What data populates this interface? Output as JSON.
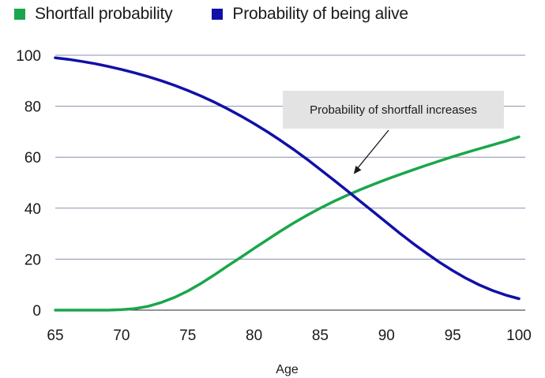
{
  "chart_data": {
    "type": "line",
    "title": "",
    "xlabel": "Age",
    "ylabel": "",
    "xlim": [
      65,
      100
    ],
    "ylim": [
      0,
      100
    ],
    "x_ticks": [
      65,
      70,
      75,
      80,
      85,
      90,
      95,
      100
    ],
    "y_ticks": [
      0,
      20,
      40,
      60,
      80,
      100
    ],
    "grid": "horizontal",
    "legend_placement": "top-left",
    "series": [
      {
        "name": "Shortfall probability",
        "color": "#1aa64b",
        "x": [
          65,
          66,
          67,
          68,
          69,
          70,
          71,
          72,
          73,
          74,
          75,
          76,
          77,
          78,
          79,
          80,
          81,
          82,
          83,
          84,
          85,
          86,
          87,
          88,
          89,
          90,
          91,
          92,
          93,
          94,
          95,
          96,
          97,
          98,
          99,
          100
        ],
        "values": [
          0,
          0,
          0,
          0,
          0,
          0.2,
          0.6,
          1.5,
          3,
          5,
          7.5,
          10.5,
          13.8,
          17.3,
          20.7,
          24.2,
          27.6,
          31,
          34.2,
          37.2,
          40,
          42.6,
          45,
          47.2,
          49.3,
          51.3,
          53.2,
          55,
          56.8,
          58.5,
          60.2,
          61.8,
          63.3,
          64.8,
          66.3,
          68
        ]
      },
      {
        "name": "Probability of being alive",
        "color": "#1010a8",
        "x": [
          65,
          66,
          67,
          68,
          69,
          70,
          71,
          72,
          73,
          74,
          75,
          76,
          77,
          78,
          79,
          80,
          81,
          82,
          83,
          84,
          85,
          86,
          87,
          88,
          89,
          90,
          91,
          92,
          93,
          94,
          95,
          96,
          97,
          98,
          99,
          100
        ],
        "values": [
          99,
          98.4,
          97.6,
          96.7,
          95.6,
          94.4,
          93.1,
          91.6,
          90,
          88.2,
          86.2,
          84,
          81.6,
          79,
          76.2,
          73.2,
          70,
          66.6,
          63,
          59.2,
          55.2,
          51.1,
          47,
          42.8,
          38.6,
          34.4,
          30.2,
          26.2,
          22.4,
          18.8,
          15.5,
          12.5,
          9.9,
          7.7,
          5.9,
          4.5
        ]
      }
    ],
    "annotations": [
      {
        "text": "Probability of shortfall increases",
        "target_x": 88,
        "target_y": 54
      }
    ]
  }
}
